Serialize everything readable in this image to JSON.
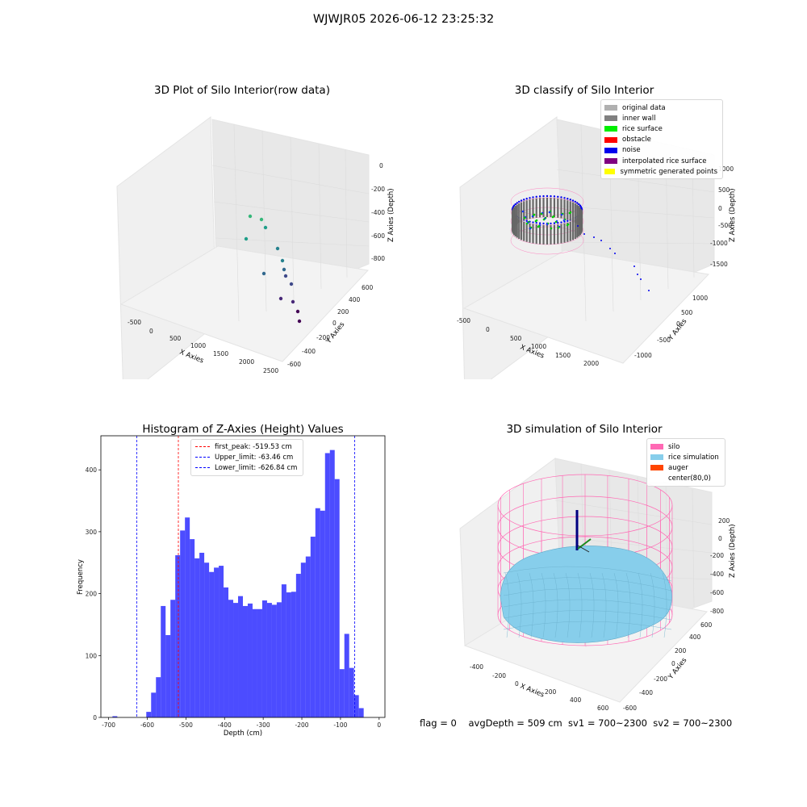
{
  "figure": {
    "suptitle": "WJWJR05 2026-06-12 23:25:32",
    "footer": "flag = 0    avgDepth = 509 cm  sv1 = 700~2300  sv2 = 700~2300"
  },
  "panels": {
    "raw": {
      "title": "3D Plot of Silo Interior(row data)",
      "xlabel": "X Axies",
      "ylabel": "Y Axies",
      "zlabel": "Z Axies (Depth)",
      "xticks": [
        "-500",
        "0",
        "500",
        "1000",
        "1500",
        "2000",
        "2500"
      ],
      "yticks": [
        "-600",
        "-400",
        "-200",
        "0",
        "200",
        "400",
        "600"
      ],
      "zticks": [
        "0",
        "-200",
        "-400",
        "-600",
        "-800"
      ]
    },
    "classify": {
      "title": "3D classify of Silo Interior",
      "xlabel": "X Axies",
      "ylabel": "Y Axies",
      "zlabel": "Z Axies (Depth)",
      "xticks": [
        "-500",
        "0",
        "500",
        "1000",
        "1500",
        "2000"
      ],
      "yticks": [
        "-1000",
        "-500",
        "0",
        "500",
        "1000"
      ],
      "zticks": [
        "1000",
        "500",
        "0",
        "-500",
        "-1000",
        "-1500"
      ],
      "legend": [
        {
          "label": "original data",
          "color": "#b0b0b0"
        },
        {
          "label": "inner wall",
          "color": "#808080"
        },
        {
          "label": "rice surface",
          "color": "#00ee00"
        },
        {
          "label": "obstacle",
          "color": "#ff0000"
        },
        {
          "label": "noise",
          "color": "#0000ee"
        },
        {
          "label": "interpolated rice surface",
          "color": "#800080"
        },
        {
          "label": "symmetric generated points",
          "color": "#ffff00"
        }
      ]
    },
    "simulation": {
      "title": "3D simulation of Silo Interior",
      "xlabel": "X Axies",
      "ylabel": "Y Axies",
      "zlabel": "Z Axies (Depth)",
      "xticks": [
        "-400",
        "-200",
        "0",
        "200",
        "400",
        "600"
      ],
      "yticks": [
        "-600",
        "-400",
        "-200",
        "0",
        "200",
        "400",
        "600"
      ],
      "zticks": [
        "200",
        "0",
        "-200",
        "-400",
        "-600",
        "-800"
      ],
      "legend": [
        {
          "label": "silo",
          "color": "#ff69b4"
        },
        {
          "label": "rice simulation",
          "color": "#87ceeb"
        },
        {
          "label": "auger",
          "color": "#ff4500"
        },
        {
          "label": "center(80,0)",
          "color": "#ffffff"
        }
      ]
    }
  },
  "chart_data": {
    "type": "bar",
    "title": "Histogram of Z-Axies (Height) Values",
    "xlabel": "Depth (cm)",
    "ylabel": "Frequency",
    "xlim": [
      -720,
      15
    ],
    "ylim": [
      0,
      455
    ],
    "xticks": [
      -700,
      -600,
      -500,
      -400,
      -300,
      -200,
      -100,
      0
    ],
    "yticks": [
      0,
      100,
      200,
      300,
      400
    ],
    "bin_start": -690,
    "bin_width": 12.5,
    "color": "#0000ff",
    "values": [
      2,
      0,
      0,
      0,
      0,
      0,
      0,
      9,
      40,
      65,
      180,
      133,
      190,
      262,
      302,
      323,
      288,
      257,
      266,
      250,
      235,
      242,
      245,
      210,
      190,
      185,
      196,
      180,
      184,
      175,
      175,
      189,
      185,
      182,
      186,
      215,
      202,
      203,
      232,
      250,
      260,
      292,
      338,
      334,
      427,
      432,
      385,
      78,
      135,
      80,
      36,
      15
    ],
    "vlines": [
      {
        "x": -519.53,
        "color": "#ff0000",
        "label": "first_peak: -519.53 cm"
      },
      {
        "x": -63.46,
        "color": "#0000ff",
        "label": "Upper_limit: -63.46 cm"
      },
      {
        "x": -626.84,
        "color": "#0000ff",
        "label": "Lower_limit: -626.84 cm"
      }
    ]
  }
}
